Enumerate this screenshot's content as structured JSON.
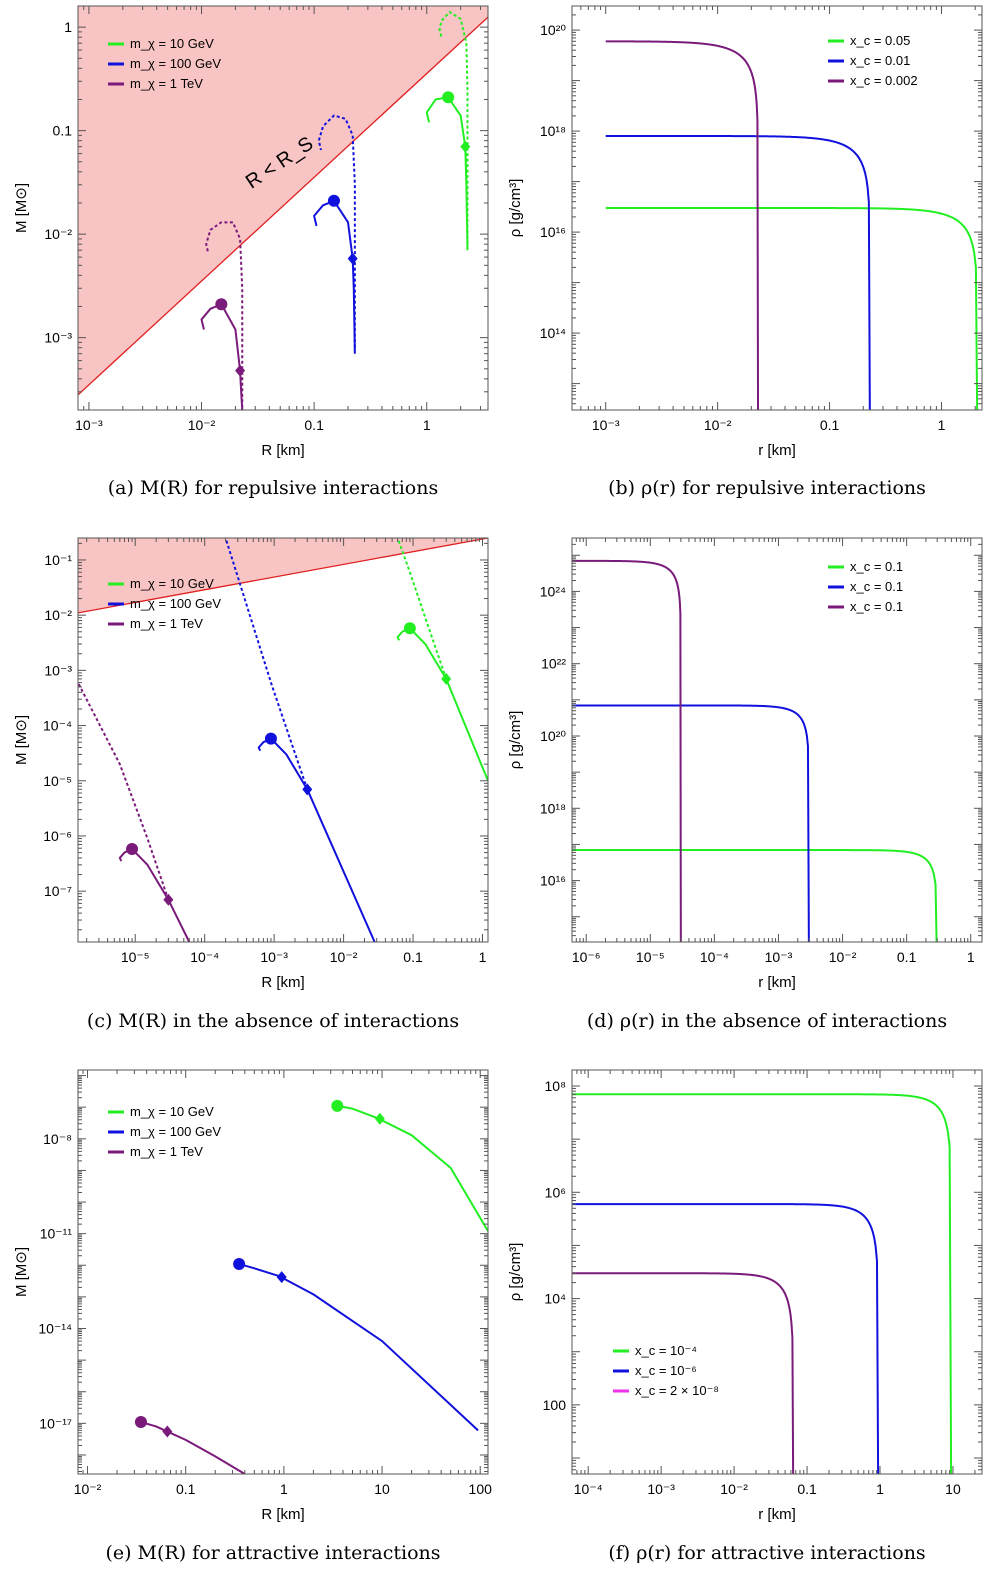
{
  "colors": {
    "green": "#22ee22",
    "blue": "#1111dd",
    "purple": "#7a1a7a",
    "magenta": "#ee33ee",
    "forbidden_fill": "#f9c4c4",
    "forbidden_line": "#e02020"
  },
  "chart_data": [
    {
      "id": "a",
      "type": "line",
      "caption": "(a) M(R) for repulsive interactions",
      "xlabel": "R [km]",
      "ylabel": "M [M⊙]",
      "xscale": "log",
      "yscale": "log",
      "xlim": [
        0.0008,
        3.5
      ],
      "ylim": [
        0.0002,
        1.6
      ],
      "xticks": [
        {
          "v": 0.001,
          "t": "10⁻³"
        },
        {
          "v": 0.01,
          "t": "10⁻²"
        },
        {
          "v": 0.1,
          "t": "0.1"
        },
        {
          "v": 1,
          "t": "1"
        }
      ],
      "yticks": [
        {
          "v": 0.001,
          "t": "10⁻³"
        },
        {
          "v": 0.01,
          "t": "10⁻²"
        },
        {
          "v": 0.1,
          "t": "0.1"
        },
        {
          "v": 1,
          "t": "1"
        }
      ],
      "legend": [
        "m_χ = 10 GeV",
        "m_χ = 100 GeV",
        "m_χ = 1 TeV"
      ],
      "region": {
        "label": "R < R_S",
        "line": [
          [
            0.0008,
            0.00028
          ],
          [
            3.5,
            1.25
          ]
        ]
      },
      "series": [
        {
          "name": "m_χ = 10 GeV",
          "color": "green",
          "solid": [
            [
              2.3,
              0.007
            ],
            [
              2.25,
              0.03
            ],
            [
              2.2,
              0.07
            ],
            [
              2.0,
              0.14
            ],
            [
              1.55,
              0.21
            ],
            [
              1.2,
              0.2
            ],
            [
              1.0,
              0.15
            ],
            [
              1.05,
              0.12
            ]
          ],
          "dashed": [
            [
              2.3,
              0.008
            ],
            [
              2.3,
              0.25
            ],
            [
              2.25,
              0.7
            ],
            [
              2.0,
              1.2
            ],
            [
              1.6,
              1.4
            ],
            [
              1.35,
              1.15
            ],
            [
              1.3,
              0.95
            ],
            [
              1.35,
              0.8
            ]
          ],
          "circle": [
            1.55,
            0.21
          ],
          "diamond": [
            2.2,
            0.07
          ]
        },
        {
          "name": "m_χ = 100 GeV",
          "color": "blue",
          "solid": [
            [
              0.23,
              0.0007
            ],
            [
              0.225,
              0.003
            ],
            [
              0.22,
              0.0058
            ],
            [
              0.2,
              0.013
            ],
            [
              0.15,
              0.021
            ],
            [
              0.12,
              0.019
            ],
            [
              0.1,
              0.015
            ],
            [
              0.105,
              0.012
            ]
          ],
          "dashed": [
            [
              0.23,
              0.0008
            ],
            [
              0.23,
              0.03
            ],
            [
              0.22,
              0.09
            ],
            [
              0.19,
              0.13
            ],
            [
              0.15,
              0.14
            ],
            [
              0.12,
              0.11
            ],
            [
              0.11,
              0.08
            ],
            [
              0.115,
              0.065
            ]
          ],
          "circle": [
            0.15,
            0.021
          ],
          "diamond": [
            0.22,
            0.0058
          ]
        },
        {
          "name": "m_χ = 1 TeV",
          "color": "purple",
          "solid": [
            [
              0.023,
              0.0002
            ],
            [
              0.0225,
              0.0003
            ],
            [
              0.022,
              0.00048
            ],
            [
              0.02,
              0.0012
            ],
            [
              0.015,
              0.0021
            ],
            [
              0.012,
              0.0019
            ],
            [
              0.01,
              0.0015
            ],
            [
              0.0105,
              0.0012
            ]
          ],
          "dashed": [
            [
              0.023,
              0.00021
            ],
            [
              0.023,
              0.003
            ],
            [
              0.022,
              0.009
            ],
            [
              0.019,
              0.013
            ],
            [
              0.015,
              0.013
            ],
            [
              0.012,
              0.011
            ],
            [
              0.011,
              0.008
            ],
            [
              0.0115,
              0.0065
            ]
          ],
          "circle": [
            0.015,
            0.0021
          ],
          "diamond": [
            0.022,
            0.00048
          ]
        }
      ]
    },
    {
      "id": "b",
      "type": "line",
      "caption": "(b) ρ(r) for repulsive interactions",
      "xlabel": "r [km]",
      "ylabel": "ρ [g/cm³]",
      "xscale": "log",
      "yscale": "log",
      "xlim": [
        0.0005,
        2.3
      ],
      "ylim": [
        3000000000000.0,
        3e+20
      ],
      "xticks": [
        {
          "v": 0.001,
          "t": "10⁻³"
        },
        {
          "v": 0.01,
          "t": "10⁻²"
        },
        {
          "v": 0.1,
          "t": "0.1"
        },
        {
          "v": 1,
          "t": "1"
        }
      ],
      "yticks": [
        {
          "v": 100000000000000.0,
          "t": "10¹⁴"
        },
        {
          "v": 1e+16,
          "t": "10¹⁶"
        },
        {
          "v": 1e+18,
          "t": "10¹⁸"
        },
        {
          "v": 1e+20,
          "t": "10²⁰"
        }
      ],
      "legend": [
        "x_c = 0.05",
        "x_c = 0.01",
        "x_c = 0.002"
      ],
      "series": [
        {
          "name": "x_c = 0.05",
          "color": "green",
          "rho0": 3e+16,
          "R": 2.1
        },
        {
          "name": "x_c = 0.01",
          "color": "blue",
          "rho0": 8e+17,
          "R": 0.23
        },
        {
          "name": "x_c = 0.002",
          "color": "purple",
          "rho0": 6e+19,
          "R": 0.023
        }
      ]
    },
    {
      "id": "c",
      "type": "line",
      "caption": "(c) M(R) in the absence of interactions",
      "xlabel": "R [km]",
      "ylabel": "M [M⊙]",
      "xscale": "log",
      "yscale": "log",
      "xlim": [
        1.5e-06,
        1.2
      ],
      "ylim": [
        1.2e-08,
        0.25
      ],
      "xticks": [
        {
          "v": 1e-05,
          "t": "10⁻⁵"
        },
        {
          "v": 0.0001,
          "t": "10⁻⁴"
        },
        {
          "v": 0.001,
          "t": "10⁻³"
        },
        {
          "v": 0.01,
          "t": "10⁻²"
        },
        {
          "v": 0.1,
          "t": "0.1"
        },
        {
          "v": 1,
          "t": "1"
        }
      ],
      "yticks": [
        {
          "v": 1e-07,
          "t": "10⁻⁷"
        },
        {
          "v": 1e-06,
          "t": "10⁻⁶"
        },
        {
          "v": 1e-05,
          "t": "10⁻⁵"
        },
        {
          "v": 0.0001,
          "t": "10⁻⁴"
        },
        {
          "v": 0.001,
          "t": "10⁻³"
        },
        {
          "v": 0.01,
          "t": "10⁻²"
        },
        {
          "v": 0.1,
          "t": "10⁻¹"
        }
      ],
      "legend": [
        "m_χ = 10 GeV",
        "m_χ = 100 GeV",
        "m_χ = 1 TeV"
      ],
      "region": {
        "label": "",
        "line": [
          [
            1.5e-06,
            0.011
          ],
          [
            1.2,
            0.25
          ]
        ]
      },
      "series": [
        {
          "name": "m_χ = 10 GeV",
          "color": "green",
          "solid": [
            [
              1.2,
              1e-05
            ],
            [
              0.3,
              0.0007
            ],
            [
              0.15,
              0.003
            ],
            [
              0.09,
              0.0058
            ],
            [
              0.07,
              0.005
            ],
            [
              0.06,
              0.004
            ],
            [
              0.063,
              0.0035
            ]
          ],
          "dashed": [
            [
              0.3,
              0.0007
            ],
            [
              0.15,
              0.009
            ],
            [
              0.09,
              0.06
            ],
            [
              0.06,
              0.25
            ]
          ],
          "circle": [
            0.09,
            0.0058
          ],
          "diamond": [
            0.3,
            0.0007
          ]
        },
        {
          "name": "m_χ = 100 GeV",
          "color": "blue",
          "solid": [
            [
              0.028,
              1.2e-08
            ],
            [
              0.003,
              7e-06
            ],
            [
              0.0015,
              3e-05
            ],
            [
              0.0009,
              5.8e-05
            ],
            [
              0.0007,
              5e-05
            ],
            [
              0.0006,
              4e-05
            ],
            [
              0.00063,
              3.5e-05
            ]
          ],
          "dashed": [
            [
              0.003,
              7e-06
            ],
            [
              0.0015,
              9e-05
            ],
            [
              0.0009,
              0.0006
            ],
            [
              0.0002,
              0.25
            ]
          ],
          "circle": [
            0.0009,
            5.8e-05
          ],
          "diamond": [
            0.003,
            7e-06
          ]
        },
        {
          "name": "m_χ = 1 TeV",
          "color": "purple",
          "solid": [
            [
              6e-05,
              1.2e-08
            ],
            [
              3e-05,
              7e-08
            ],
            [
              1.5e-05,
              3e-07
            ],
            [
              9e-06,
              5.8e-07
            ],
            [
              7e-06,
              5e-07
            ],
            [
              6e-06,
              4e-07
            ],
            [
              6.3e-06,
              3.5e-07
            ]
          ],
          "dashed": [
            [
              3e-05,
              7e-08
            ],
            [
              1.5e-05,
              9e-07
            ],
            [
              6e-06,
              2e-05
            ],
            [
              1.5e-06,
              0.0006
            ]
          ],
          "circle": [
            9e-06,
            5.8e-07
          ],
          "diamond": [
            3e-05,
            7e-08
          ]
        }
      ]
    },
    {
      "id": "d",
      "type": "line",
      "caption": "(d) ρ(r) in the absence of interactions",
      "xlabel": "r [km]",
      "ylabel": "ρ [g/cm³]",
      "xscale": "log",
      "yscale": "log",
      "xlim": [
        6e-07,
        1.5
      ],
      "ylim": [
        200000000000000.0,
        3e+25
      ],
      "xticks": [
        {
          "v": 1e-06,
          "t": "10⁻⁶"
        },
        {
          "v": 1e-05,
          "t": "10⁻⁵"
        },
        {
          "v": 0.0001,
          "t": "10⁻⁴"
        },
        {
          "v": 0.001,
          "t": "10⁻³"
        },
        {
          "v": 0.01,
          "t": "10⁻²"
        },
        {
          "v": 0.1,
          "t": "0.1"
        },
        {
          "v": 1,
          "t": "1"
        }
      ],
      "yticks": [
        {
          "v": 1e+16,
          "t": "10¹⁶"
        },
        {
          "v": 1e+18,
          "t": "10¹⁸"
        },
        {
          "v": 1e+20,
          "t": "10²⁰"
        },
        {
          "v": 1e+22,
          "t": "10²²"
        },
        {
          "v": 1e+24,
          "t": "10²⁴"
        }
      ],
      "legend": [
        "x_c = 0.1",
        "x_c = 0.1",
        "x_c = 0.1"
      ],
      "series": [
        {
          "name": "x_c = 0.1",
          "color": "green",
          "rho0": 7e+16,
          "R": 0.3
        },
        {
          "name": "x_c = 0.1",
          "color": "blue",
          "rho0": 7e+20,
          "R": 0.003
        },
        {
          "name": "x_c = 0.1",
          "color": "purple",
          "rho0": 7e+24,
          "R": 3e-05
        }
      ]
    },
    {
      "id": "e",
      "type": "line",
      "caption": "(e) M(R) for attractive interactions",
      "xlabel": "R [km]",
      "ylabel": "M [M⊙]",
      "xscale": "log",
      "yscale": "log",
      "xlim": [
        0.008,
        120
      ],
      "ylim": [
        2.5e-19,
        1.5e-06
      ],
      "xticks": [
        {
          "v": 0.01,
          "t": "10⁻²"
        },
        {
          "v": 0.1,
          "t": "0.1"
        },
        {
          "v": 1,
          "t": "1"
        },
        {
          "v": 10,
          "t": "10"
        },
        {
          "v": 100,
          "t": "100"
        }
      ],
      "yticks": [
        {
          "v": 1e-17,
          "t": "10⁻¹⁷"
        },
        {
          "v": 1e-14,
          "t": "10⁻¹⁴"
        },
        {
          "v": 1e-11,
          "t": "10⁻¹¹"
        },
        {
          "v": 1e-08,
          "t": "10⁻⁸"
        }
      ],
      "legend": [
        "m_χ = 10 GeV",
        "m_χ = 100 GeV",
        "m_χ = 1 TeV"
      ],
      "series": [
        {
          "name": "m_χ = 10 GeV",
          "color": "green",
          "solid": [
            [
              3.5,
              1.1e-07
            ],
            [
              5,
              9e-08
            ],
            [
              9,
              4.5e-08
            ],
            [
              20,
              1.3e-08
            ],
            [
              50,
              1.2e-09
            ],
            [
              120,
              1.2e-11
            ]
          ],
          "dashed": [],
          "circle": [
            3.5,
            1.1e-07
          ],
          "diamond": [
            9.5,
            4.3e-08
          ]
        },
        {
          "name": "m_χ = 100 GeV",
          "color": "blue",
          "solid": [
            [
              0.35,
              1.1e-12
            ],
            [
              0.5,
              8e-13
            ],
            [
              0.9,
              4.5e-13
            ],
            [
              2,
              1.2e-13
            ],
            [
              10,
              4e-15
            ],
            [
              95,
              6e-18
            ]
          ],
          "dashed": [],
          "circle": [
            0.35,
            1.1e-12
          ],
          "diamond": [
            0.95,
            4.2e-13
          ]
        },
        {
          "name": "m_χ = 1 TeV",
          "color": "purple",
          "solid": [
            [
              0.035,
              1.1e-17
            ],
            [
              0.05,
              8e-18
            ],
            [
              0.065,
              5.5e-18
            ],
            [
              0.1,
              3e-18
            ],
            [
              0.2,
              9e-19
            ],
            [
              0.4,
              2.5e-19
            ]
          ],
          "dashed": [],
          "circle": [
            0.035,
            1.1e-17
          ],
          "diamond": [
            0.065,
            5.5e-18
          ]
        }
      ]
    },
    {
      "id": "f",
      "type": "line",
      "caption": "(f) ρ(r) for attractive interactions",
      "xlabel": "r [km]",
      "ylabel": "ρ [g/cm³]",
      "xscale": "log",
      "yscale": "log",
      "xlim": [
        6e-05,
        25
      ],
      "ylim": [
        5,
        200000000.0
      ],
      "xticks": [
        {
          "v": 0.0001,
          "t": "10⁻⁴"
        },
        {
          "v": 0.001,
          "t": "10⁻³"
        },
        {
          "v": 0.01,
          "t": "10⁻²"
        },
        {
          "v": 0.1,
          "t": "0.1"
        },
        {
          "v": 1,
          "t": "1"
        },
        {
          "v": 10,
          "t": "10"
        }
      ],
      "yticks": [
        {
          "v": 100,
          "t": "100"
        },
        {
          "v": 10000,
          "t": "10⁴"
        },
        {
          "v": 1000000,
          "t": "10⁶"
        },
        {
          "v": 100000000,
          "t": "10⁸"
        }
      ],
      "legend": [
        "x_c = 10⁻⁴",
        "x_c = 10⁻⁶",
        "x_c = 2 × 10⁻⁸"
      ],
      "legend_colors": [
        "green",
        "blue",
        "magenta"
      ],
      "series": [
        {
          "name": "x_c = 10⁻⁴",
          "color": "green",
          "rho0": 70000000.0,
          "R": 9.5
        },
        {
          "name": "x_c = 10⁻⁶",
          "color": "blue",
          "rho0": 600000.0,
          "R": 0.95
        },
        {
          "name": "x_c = 2 × 10⁻⁸",
          "color": "purple",
          "rho0": 30000.0,
          "R": 0.065
        }
      ]
    }
  ]
}
